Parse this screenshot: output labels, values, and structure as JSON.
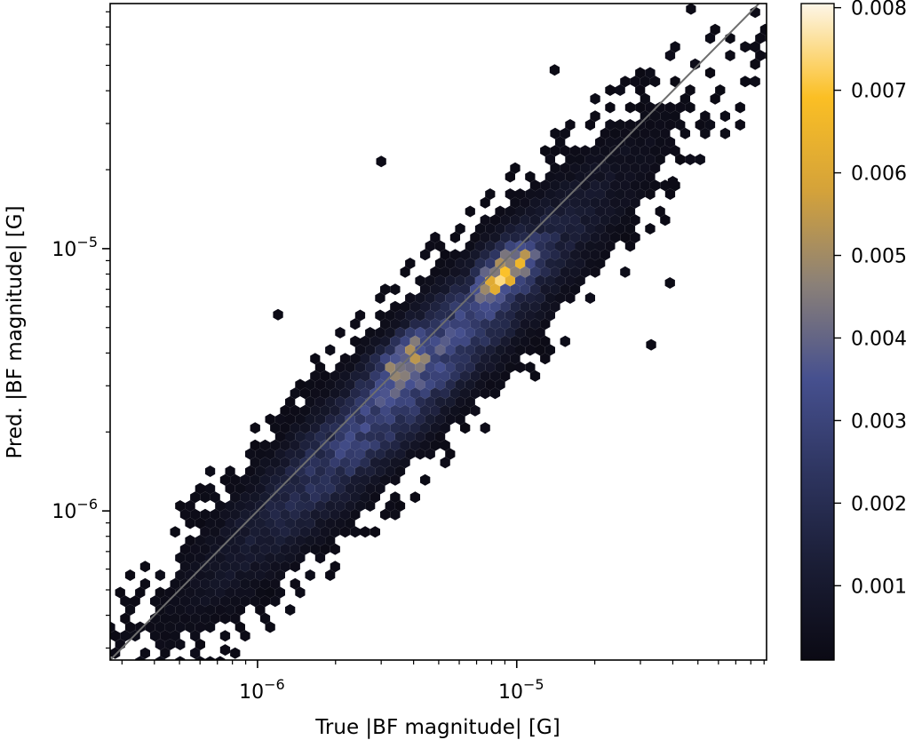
{
  "chart_data": {
    "type": "heatmap",
    "subtype": "hexbin",
    "title": "",
    "xlabel": "True |BF magnitude| [G]",
    "ylabel": "Pred. |BF magnitude| [G]",
    "xscale": "log",
    "yscale": "log",
    "xlim": [
      2.7e-07,
      9.2e-05
    ],
    "ylim": [
      2.7e-07,
      8.6e-05
    ],
    "x_major_ticks": [
      {
        "value": 1e-06,
        "base": "10",
        "exp": "−6"
      },
      {
        "value": 1e-05,
        "base": "10",
        "exp": "−5"
      }
    ],
    "y_major_ticks": [
      {
        "value": 1e-06,
        "base": "10",
        "exp": "−6"
      },
      {
        "value": 1e-05,
        "base": "10",
        "exp": "−5"
      }
    ],
    "reference_line": "y = x",
    "colorbar": {
      "min": 0.0001,
      "max": 0.00805,
      "ticks": [
        "0.001",
        "0.002",
        "0.003",
        "0.004",
        "0.005",
        "0.006",
        "0.007",
        "0.008"
      ],
      "tick_values": [
        0.001,
        0.002,
        0.003,
        0.004,
        0.005,
        0.006,
        0.007,
        0.008
      ],
      "colormap": [
        "#0b0a14",
        "#1a1d35",
        "#2e3560",
        "#46508f",
        "#8a8078",
        "#d4a23a",
        "#fbbf24",
        "#fdf6e8"
      ]
    },
    "density": {
      "center_x": 4e-06,
      "center_y": 3.2e-06,
      "peaks": [
        {
          "x": 9.2e-06,
          "y": 8.3e-06,
          "value": 0.0075
        },
        {
          "x": 3.6e-06,
          "y": 3.8e-06,
          "value": 0.0055
        }
      ],
      "outliers": [
        {
          "x": 3e-06,
          "y": 2.15e-05
        },
        {
          "x": 1.2e-06,
          "y": 5.6e-06
        },
        {
          "x": 3.3e-05,
          "y": 4.3e-06
        },
        {
          "x": 3.9e-05,
          "y": 7.4e-06
        },
        {
          "x": 7.5e-07,
          "y": 2.95e-07
        },
        {
          "x": 4.7e-05,
          "y": 8.2e-05
        },
        {
          "x": 1.4e-05,
          "y": 4.8e-05
        },
        {
          "x": 4e-05,
          "y": 1.8e-05
        }
      ]
    }
  }
}
